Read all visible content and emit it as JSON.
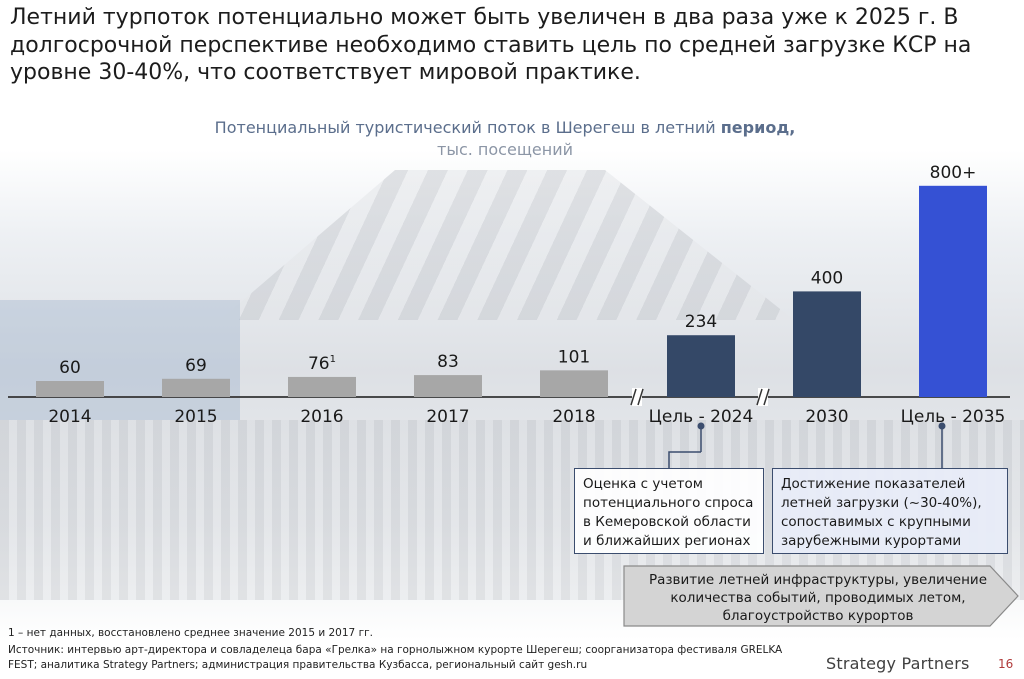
{
  "headline": "Летний турпоток потенциально может быть увеличен в два раза уже к 2025 г. В долгосрочной перспективе необходимо ставить цель по средней загрузке КСР на уровне 30-40%, что соответствует мировой практике.",
  "colors": {
    "bar_historic": "#a7a7a7",
    "bar_target": "#344867",
    "bar_longterm": "#3551d4",
    "title_color": "#5b6e8c"
  },
  "chart_data": {
    "type": "bar",
    "title": "Потенциальный туристический поток в Шерегеш в летний период,",
    "title_bold_part": "период,",
    "unit": "тыс. посещений",
    "categories": [
      "2014",
      "2015",
      "2016",
      "2017",
      "2018",
      "Цель - 2024",
      "2030",
      "Цель - 2035"
    ],
    "values": [
      60,
      69,
      76,
      83,
      101,
      234,
      400,
      800
    ],
    "value_labels": [
      "60",
      "69",
      "76",
      "83",
      "101",
      "234",
      "400",
      "800+"
    ],
    "value_label_superscripts": [
      "",
      "",
      "1",
      "",
      "",
      "",
      "",
      ""
    ],
    "bar_groups": [
      "historic",
      "historic",
      "historic",
      "historic",
      "historic",
      "target",
      "target",
      "longterm"
    ],
    "axis_breaks_after": [
      "2018",
      "Цель - 2024"
    ],
    "grid": false
  },
  "callouts": [
    {
      "text": "Оценка с учетом потенциального спроса в Кемеровской области и ближайших регионах"
    },
    {
      "text": "Достижение показателей летней загрузки (~30-40%), сопоставимых с крупными зарубежными курортами"
    }
  ],
  "arrow_text": "Развитие летней инфраструктуры, увеличение количества событий, проводимых летом, благоустройство курортов",
  "footnote": "1 – нет данных, восстановлено среднее значение 2015 и 2017 гг.",
  "source": "Источник: интервью арт-директора и совладелеца бара «Грелка» на горнолыжном курорте Шерегеш; соорганизатора фестиваля GRELKA FEST; аналитика Strategy Partners; администрация правительства Кузбасса, региональный сайт gesh.ru",
  "logo": "Strategy Partners",
  "page_number": "16"
}
